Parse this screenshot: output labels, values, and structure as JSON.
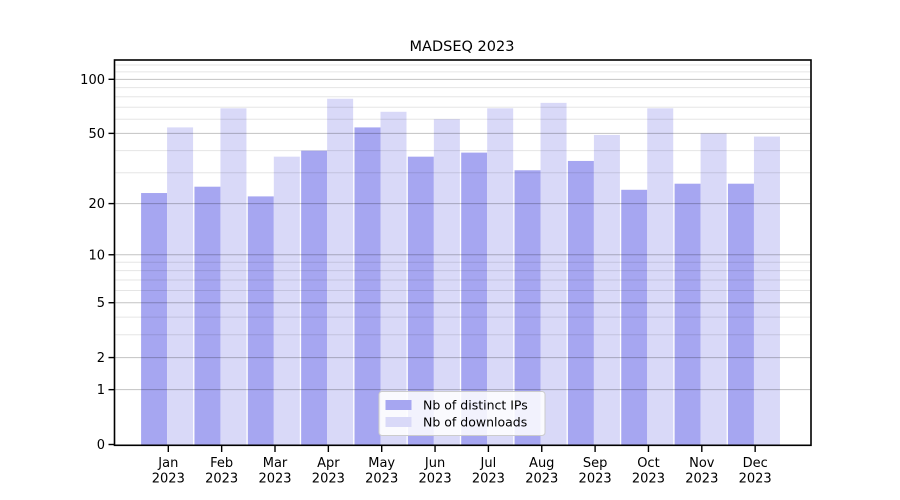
{
  "chart_data": {
    "type": "bar",
    "title": "MADSEQ 2023",
    "categories": [
      "Jan",
      "Feb",
      "Mar",
      "Apr",
      "May",
      "Jun",
      "Jul",
      "Aug",
      "Sep",
      "Oct",
      "Nov",
      "Dec"
    ],
    "year_label": "2023",
    "series": [
      {
        "name": "Nb of distinct IPs",
        "color": "#a6a6f1",
        "values": [
          23,
          25,
          22,
          40,
          54,
          37,
          39,
          31,
          35,
          24,
          26,
          26
        ]
      },
      {
        "name": "Nb of downloads",
        "color": "#d9d9f8",
        "values": [
          54,
          69,
          37,
          78,
          66,
          60,
          69,
          74,
          49,
          69,
          50,
          48
        ]
      }
    ],
    "yscale": "log1p",
    "yticks": [
      0,
      1,
      2,
      5,
      10,
      20,
      50,
      100
    ],
    "minor_yticks": [
      3,
      4,
      6,
      7,
      8,
      9,
      30,
      40,
      60,
      70,
      80,
      90,
      110,
      120
    ],
    "ylim": [
      0,
      128
    ],
    "xlabel": "",
    "ylabel": "",
    "grid": true,
    "legend_position": "lower center"
  },
  "colors": {
    "background": "#ffffff",
    "bar_ips": "#a6a6f1",
    "bar_downloads": "#d9d9f8",
    "axis": "#000000",
    "major_grid": "rgba(0,0,0,0.24)",
    "minor_grid": "rgba(0,0,0,0.10)",
    "text": "#000000",
    "legend_border": "#cccccc",
    "legend_bg": "rgba(255,255,255,0.85)"
  }
}
